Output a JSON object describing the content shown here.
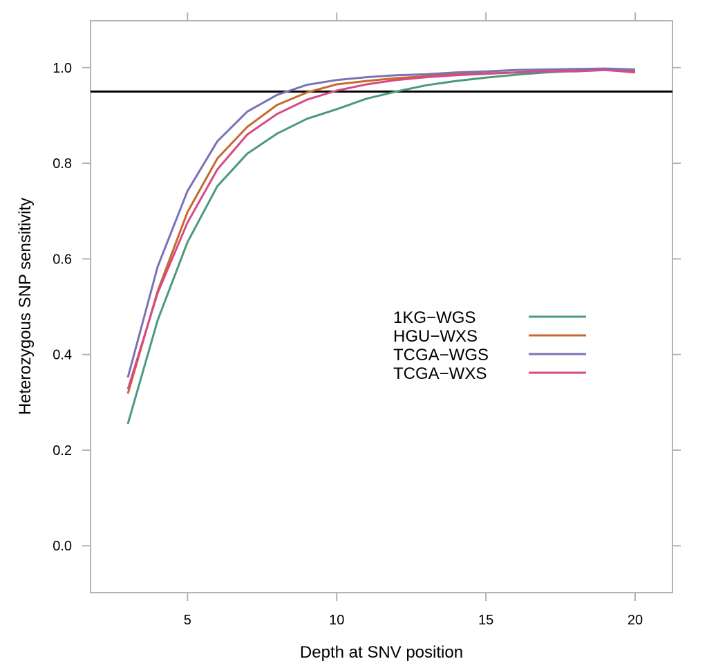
{
  "chart_data": {
    "type": "line",
    "title": "",
    "xlabel": "Depth at SNV position",
    "ylabel": "Heterozygous SNP sensitivity",
    "xlim": [
      1.75,
      21.25
    ],
    "ylim": [
      -0.098,
      1.098
    ],
    "x_ticks": [
      5,
      10,
      15,
      20
    ],
    "x_tick_labels": [
      "5",
      "10",
      "15",
      "20"
    ],
    "y_ticks": [
      0.0,
      0.2,
      0.4,
      0.6,
      0.8,
      1.0
    ],
    "y_tick_labels": [
      "0.0",
      "0.2",
      "0.4",
      "0.6",
      "0.8",
      "1.0"
    ],
    "grid": false,
    "legend_position": "center-right",
    "reference_line": {
      "y": 0.95,
      "color": "#000000"
    },
    "x": [
      3,
      4,
      5,
      6,
      7,
      8,
      9,
      10,
      11,
      12,
      13,
      14,
      15,
      16,
      17,
      18,
      19,
      20
    ],
    "series": [
      {
        "name": "1KG−WGS",
        "color": "#4a9a7a",
        "values": [
          0.255,
          0.472,
          0.635,
          0.752,
          0.82,
          0.862,
          0.893,
          0.913,
          0.935,
          0.95,
          0.963,
          0.972,
          0.979,
          0.985,
          0.99,
          0.993,
          0.996,
          0.995
        ]
      },
      {
        "name": "HGU−WXS",
        "color": "#c46a2e",
        "values": [
          0.318,
          0.533,
          0.698,
          0.81,
          0.876,
          0.922,
          0.948,
          0.965,
          0.972,
          0.978,
          0.982,
          0.986,
          0.988,
          0.99,
          0.992,
          0.993,
          0.996,
          0.994
        ]
      },
      {
        "name": "TCGA−WGS",
        "color": "#7a72b5",
        "values": [
          0.352,
          0.584,
          0.742,
          0.846,
          0.908,
          0.943,
          0.964,
          0.974,
          0.98,
          0.984,
          0.986,
          0.99,
          0.992,
          0.995,
          0.996,
          0.997,
          0.998,
          0.996
        ]
      },
      {
        "name": "TCGA−WXS",
        "color": "#d64a86",
        "values": [
          0.327,
          0.529,
          0.676,
          0.787,
          0.86,
          0.903,
          0.933,
          0.952,
          0.965,
          0.974,
          0.98,
          0.984,
          0.987,
          0.99,
          0.992,
          0.992,
          0.995,
          0.99
        ]
      }
    ]
  }
}
